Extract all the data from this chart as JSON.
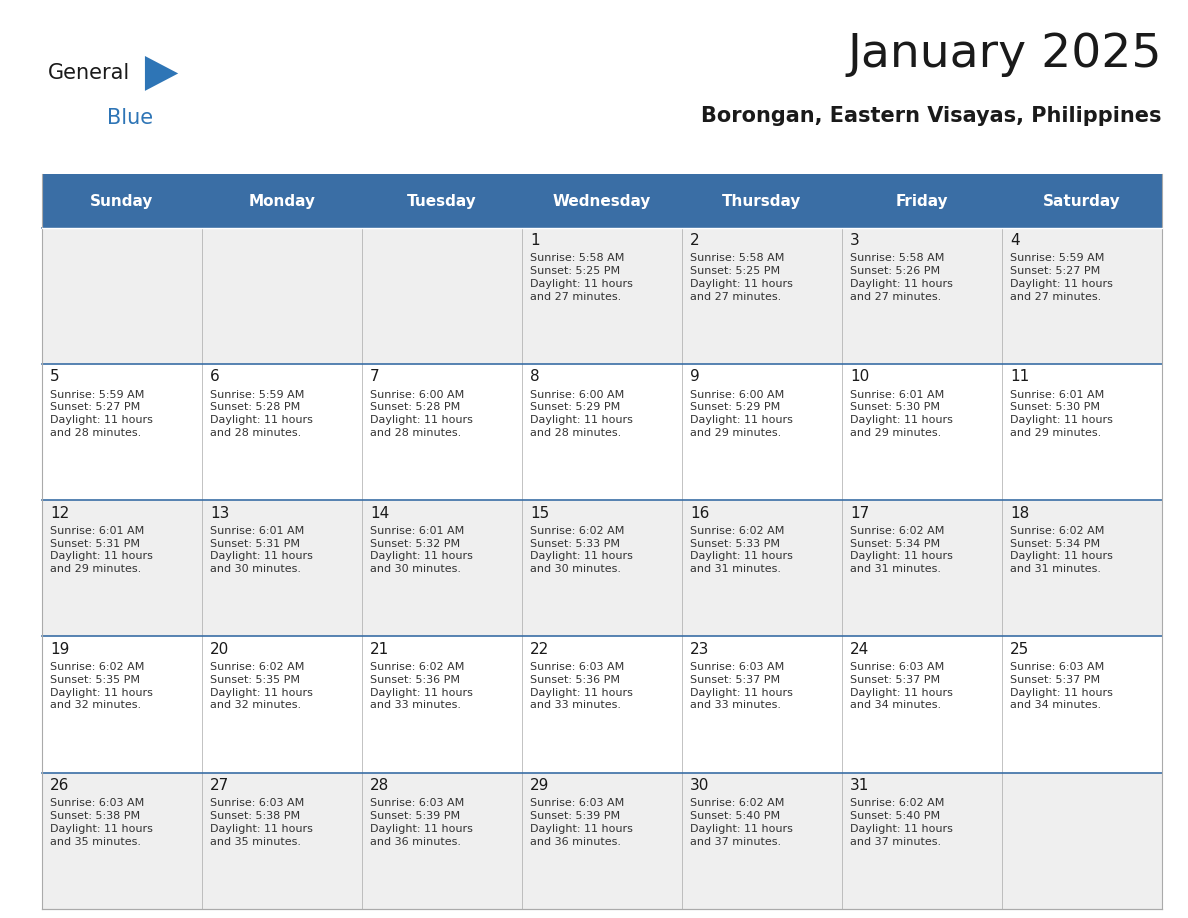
{
  "title": "January 2025",
  "subtitle": "Borongan, Eastern Visayas, Philippines",
  "days_of_week": [
    "Sunday",
    "Monday",
    "Tuesday",
    "Wednesday",
    "Thursday",
    "Friday",
    "Saturday"
  ],
  "header_bg": "#3A6EA5",
  "header_text": "#FFFFFF",
  "cell_bg_light": "#EFEFEF",
  "cell_bg_white": "#FFFFFF",
  "cell_border": "#AAAAAA",
  "week_separator": "#3A6EA5",
  "day_num_color": "#1a1a1a",
  "text_color": "#333333",
  "title_color": "#1a1a1a",
  "subtitle_color": "#1a1a1a",
  "logo_general_color": "#1a1a1a",
  "logo_blue_color": "#2E75B6",
  "calendar_data": [
    [
      null,
      null,
      null,
      {
        "day": 1,
        "sunrise": "5:58 AM",
        "sunset": "5:25 PM",
        "daylight_line1": "Daylight: 11 hours",
        "daylight_line2": "and 27 minutes."
      },
      {
        "day": 2,
        "sunrise": "5:58 AM",
        "sunset": "5:25 PM",
        "daylight_line1": "Daylight: 11 hours",
        "daylight_line2": "and 27 minutes."
      },
      {
        "day": 3,
        "sunrise": "5:58 AM",
        "sunset": "5:26 PM",
        "daylight_line1": "Daylight: 11 hours",
        "daylight_line2": "and 27 minutes."
      },
      {
        "day": 4,
        "sunrise": "5:59 AM",
        "sunset": "5:27 PM",
        "daylight_line1": "Daylight: 11 hours",
        "daylight_line2": "and 27 minutes."
      }
    ],
    [
      {
        "day": 5,
        "sunrise": "5:59 AM",
        "sunset": "5:27 PM",
        "daylight_line1": "Daylight: 11 hours",
        "daylight_line2": "and 28 minutes."
      },
      {
        "day": 6,
        "sunrise": "5:59 AM",
        "sunset": "5:28 PM",
        "daylight_line1": "Daylight: 11 hours",
        "daylight_line2": "and 28 minutes."
      },
      {
        "day": 7,
        "sunrise": "6:00 AM",
        "sunset": "5:28 PM",
        "daylight_line1": "Daylight: 11 hours",
        "daylight_line2": "and 28 minutes."
      },
      {
        "day": 8,
        "sunrise": "6:00 AM",
        "sunset": "5:29 PM",
        "daylight_line1": "Daylight: 11 hours",
        "daylight_line2": "and 28 minutes."
      },
      {
        "day": 9,
        "sunrise": "6:00 AM",
        "sunset": "5:29 PM",
        "daylight_line1": "Daylight: 11 hours",
        "daylight_line2": "and 29 minutes."
      },
      {
        "day": 10,
        "sunrise": "6:01 AM",
        "sunset": "5:30 PM",
        "daylight_line1": "Daylight: 11 hours",
        "daylight_line2": "and 29 minutes."
      },
      {
        "day": 11,
        "sunrise": "6:01 AM",
        "sunset": "5:30 PM",
        "daylight_line1": "Daylight: 11 hours",
        "daylight_line2": "and 29 minutes."
      }
    ],
    [
      {
        "day": 12,
        "sunrise": "6:01 AM",
        "sunset": "5:31 PM",
        "daylight_line1": "Daylight: 11 hours",
        "daylight_line2": "and 29 minutes."
      },
      {
        "day": 13,
        "sunrise": "6:01 AM",
        "sunset": "5:31 PM",
        "daylight_line1": "Daylight: 11 hours",
        "daylight_line2": "and 30 minutes."
      },
      {
        "day": 14,
        "sunrise": "6:01 AM",
        "sunset": "5:32 PM",
        "daylight_line1": "Daylight: 11 hours",
        "daylight_line2": "and 30 minutes."
      },
      {
        "day": 15,
        "sunrise": "6:02 AM",
        "sunset": "5:33 PM",
        "daylight_line1": "Daylight: 11 hours",
        "daylight_line2": "and 30 minutes."
      },
      {
        "day": 16,
        "sunrise": "6:02 AM",
        "sunset": "5:33 PM",
        "daylight_line1": "Daylight: 11 hours",
        "daylight_line2": "and 31 minutes."
      },
      {
        "day": 17,
        "sunrise": "6:02 AM",
        "sunset": "5:34 PM",
        "daylight_line1": "Daylight: 11 hours",
        "daylight_line2": "and 31 minutes."
      },
      {
        "day": 18,
        "sunrise": "6:02 AM",
        "sunset": "5:34 PM",
        "daylight_line1": "Daylight: 11 hours",
        "daylight_line2": "and 31 minutes."
      }
    ],
    [
      {
        "day": 19,
        "sunrise": "6:02 AM",
        "sunset": "5:35 PM",
        "daylight_line1": "Daylight: 11 hours",
        "daylight_line2": "and 32 minutes."
      },
      {
        "day": 20,
        "sunrise": "6:02 AM",
        "sunset": "5:35 PM",
        "daylight_line1": "Daylight: 11 hours",
        "daylight_line2": "and 32 minutes."
      },
      {
        "day": 21,
        "sunrise": "6:02 AM",
        "sunset": "5:36 PM",
        "daylight_line1": "Daylight: 11 hours",
        "daylight_line2": "and 33 minutes."
      },
      {
        "day": 22,
        "sunrise": "6:03 AM",
        "sunset": "5:36 PM",
        "daylight_line1": "Daylight: 11 hours",
        "daylight_line2": "and 33 minutes."
      },
      {
        "day": 23,
        "sunrise": "6:03 AM",
        "sunset": "5:37 PM",
        "daylight_line1": "Daylight: 11 hours",
        "daylight_line2": "and 33 minutes."
      },
      {
        "day": 24,
        "sunrise": "6:03 AM",
        "sunset": "5:37 PM",
        "daylight_line1": "Daylight: 11 hours",
        "daylight_line2": "and 34 minutes."
      },
      {
        "day": 25,
        "sunrise": "6:03 AM",
        "sunset": "5:37 PM",
        "daylight_line1": "Daylight: 11 hours",
        "daylight_line2": "and 34 minutes."
      }
    ],
    [
      {
        "day": 26,
        "sunrise": "6:03 AM",
        "sunset": "5:38 PM",
        "daylight_line1": "Daylight: 11 hours",
        "daylight_line2": "and 35 minutes."
      },
      {
        "day": 27,
        "sunrise": "6:03 AM",
        "sunset": "5:38 PM",
        "daylight_line1": "Daylight: 11 hours",
        "daylight_line2": "and 35 minutes."
      },
      {
        "day": 28,
        "sunrise": "6:03 AM",
        "sunset": "5:39 PM",
        "daylight_line1": "Daylight: 11 hours",
        "daylight_line2": "and 36 minutes."
      },
      {
        "day": 29,
        "sunrise": "6:03 AM",
        "sunset": "5:39 PM",
        "daylight_line1": "Daylight: 11 hours",
        "daylight_line2": "and 36 minutes."
      },
      {
        "day": 30,
        "sunrise": "6:02 AM",
        "sunset": "5:40 PM",
        "daylight_line1": "Daylight: 11 hours",
        "daylight_line2": "and 37 minutes."
      },
      {
        "day": 31,
        "sunrise": "6:02 AM",
        "sunset": "5:40 PM",
        "daylight_line1": "Daylight: 11 hours",
        "daylight_line2": "and 37 minutes."
      },
      null
    ]
  ],
  "num_weeks": 5,
  "figsize": [
    11.88,
    9.18
  ],
  "dpi": 100
}
